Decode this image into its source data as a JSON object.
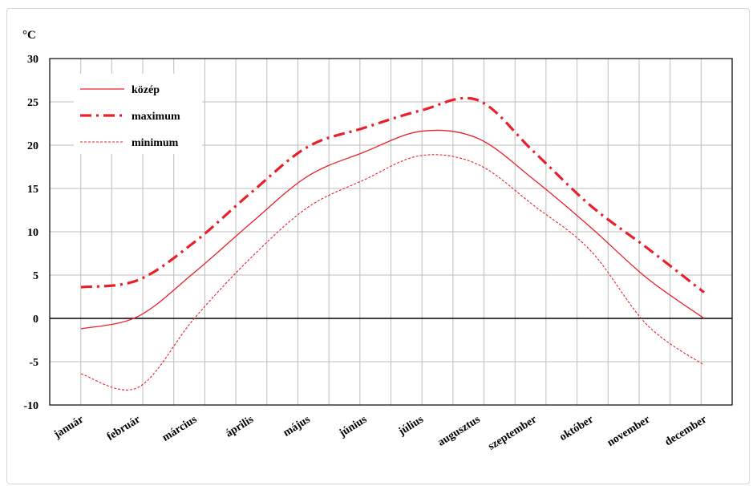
{
  "chart_data": {
    "type": "line",
    "unit_label": "°C",
    "categories": [
      "január",
      "február",
      "március",
      "április",
      "május",
      "június",
      "július",
      "augusztus",
      "szeptember",
      "október",
      "november",
      "december"
    ],
    "ylim": [
      -10,
      30
    ],
    "yticks": [
      30,
      25,
      20,
      15,
      10,
      5,
      0,
      -5,
      -10
    ],
    "grid": true,
    "legend_placement": "top-left",
    "series": [
      {
        "name": "közép",
        "style": "solid",
        "color": "#e8202a",
        "values": [
          -1.2,
          0.2,
          5.3,
          11.0,
          16.4,
          19.2,
          21.6,
          20.8,
          16.0,
          10.5,
          4.6,
          0.0
        ]
      },
      {
        "name": "maximum",
        "style": "dash-dot",
        "color": "#e8202a",
        "values": [
          3.6,
          4.4,
          8.8,
          14.5,
          19.8,
          22.0,
          24.0,
          25.2,
          19.2,
          13.0,
          8.1,
          3.0
        ]
      },
      {
        "name": "minimum",
        "style": "dotted",
        "color": "#e8202a",
        "values": [
          -6.4,
          -8.0,
          0.0,
          7.0,
          12.8,
          16.0,
          18.8,
          17.8,
          13.0,
          7.8,
          -0.8,
          -5.4
        ]
      }
    ]
  }
}
